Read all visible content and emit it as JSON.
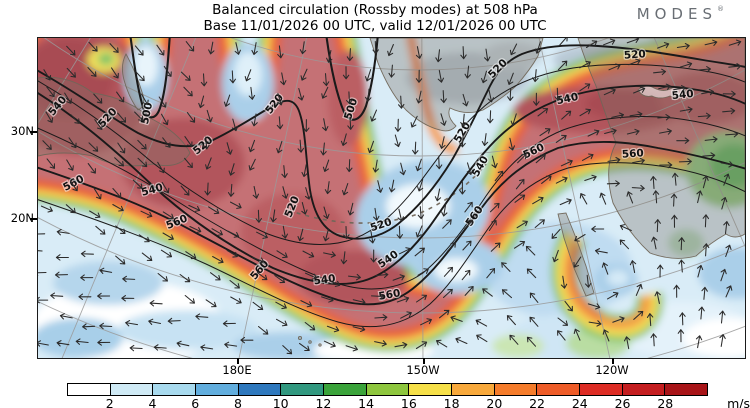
{
  "header": {
    "title_line1": "Balanced circulation (Rossby modes) at 508 hPa",
    "title_line2": "Base 11/01/2026 00 UTC, valid 12/01/2026 00 UTC",
    "logo_text": "MODES",
    "logo_mark": "®"
  },
  "axes": {
    "lat_ticks": [
      "30N",
      "20N"
    ],
    "lon_ticks": [
      "180E",
      "150W",
      "120W"
    ]
  },
  "colorbar": {
    "ticks": [
      "2",
      "4",
      "6",
      "8",
      "10",
      "12",
      "14",
      "16",
      "18",
      "20",
      "22",
      "24",
      "26",
      "28"
    ],
    "unit": "m/s",
    "colors": [
      "#ffffff",
      "#cfeaf5",
      "#a8daee",
      "#62aede",
      "#2e78bd",
      "#31987f",
      "#3aa33a",
      "#8ec63e",
      "#f6e049",
      "#f8a93c",
      "#f57c2b",
      "#ee5c28",
      "#dd2c24",
      "#c41e20",
      "#a81418"
    ]
  },
  "map": {
    "contour_label_values": [
      "540",
      "520",
      "500",
      "520",
      "540",
      "560",
      "560",
      "520",
      "500",
      "520",
      "560",
      "540",
      "560",
      "540",
      "520",
      "560",
      "540",
      "520",
      "520",
      "540",
      "560",
      "520",
      "540",
      "560"
    ]
  },
  "chart_data": {
    "type": "heatmap",
    "title": "Balanced circulation (Rossby modes) at 508 hPa",
    "subtitle": "Base 11/01/2026 00 UTC, valid 12/01/2026 00 UTC",
    "field": "balanced wind speed",
    "overlays": [
      "geopotential height contours",
      "wind vectors"
    ],
    "contour_levels": [
      500,
      520,
      540,
      560
    ],
    "colorbar": {
      "unit": "m/s",
      "tick_values": [
        2,
        4,
        6,
        8,
        10,
        12,
        14,
        16,
        18,
        20,
        22,
        24,
        26,
        28
      ],
      "range": [
        0,
        30
      ]
    },
    "x_tick_labels": [
      "180E",
      "150W",
      "120W"
    ],
    "y_tick_labels": [
      "30N",
      "20N"
    ],
    "legend_position": "bottom",
    "grid": "curved graticule, gray"
  }
}
